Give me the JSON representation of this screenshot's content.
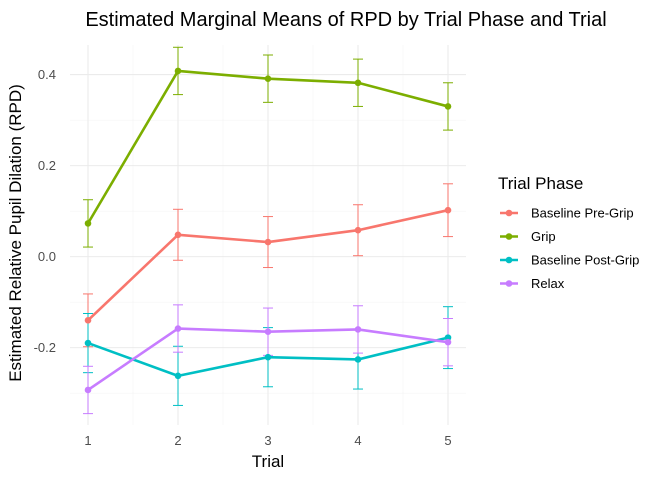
{
  "chart_data": {
    "type": "line",
    "title": "Estimated Marginal Means of RPD by Trial Phase and Trial",
    "xlabel": "Trial",
    "ylabel": "Estimated Relative Pupil Dilation (RPD)",
    "x": [
      1,
      2,
      3,
      4,
      5
    ],
    "x_tick_labels": [
      "1",
      "2",
      "3",
      "4",
      "5"
    ],
    "xlim": [
      0.8,
      5.2
    ],
    "y_ticks": [
      -0.2,
      0.0,
      0.2,
      0.4
    ],
    "y_tick_labels": [
      "-0.2",
      "0.0",
      "0.2",
      "0.4"
    ],
    "ylim": [
      -0.37,
      0.465
    ],
    "grid": true,
    "legend": {
      "title": "Trial Phase",
      "position": "right"
    },
    "series": [
      {
        "name": "Baseline Pre-Grip",
        "color": "#F8766D",
        "values": [
          -0.14,
          0.048,
          0.032,
          0.058,
          0.102
        ],
        "lower": [
          -0.198,
          -0.008,
          -0.024,
          0.002,
          0.044
        ],
        "upper": [
          -0.082,
          0.104,
          0.088,
          0.114,
          0.16
        ]
      },
      {
        "name": "Grip",
        "color": "#7CAE00",
        "values": [
          0.073,
          0.408,
          0.391,
          0.382,
          0.33
        ],
        "lower": [
          0.021,
          0.356,
          0.339,
          0.33,
          0.278
        ],
        "upper": [
          0.125,
          0.46,
          0.443,
          0.434,
          0.382
        ]
      },
      {
        "name": "Baseline Post-Grip",
        "color": "#00BFC4",
        "values": [
          -0.19,
          -0.262,
          -0.221,
          -0.226,
          -0.178
        ],
        "lower": [
          -0.255,
          -0.327,
          -0.286,
          -0.291,
          -0.246
        ],
        "upper": [
          -0.125,
          -0.197,
          -0.156,
          -0.161,
          -0.11
        ]
      },
      {
        "name": "Relax",
        "color": "#C77CFF",
        "values": [
          -0.293,
          -0.158,
          -0.165,
          -0.16,
          -0.188
        ],
        "lower": [
          -0.345,
          -0.21,
          -0.217,
          -0.212,
          -0.24
        ],
        "upper": [
          -0.241,
          -0.106,
          -0.113,
          -0.108,
          -0.136
        ]
      }
    ]
  }
}
